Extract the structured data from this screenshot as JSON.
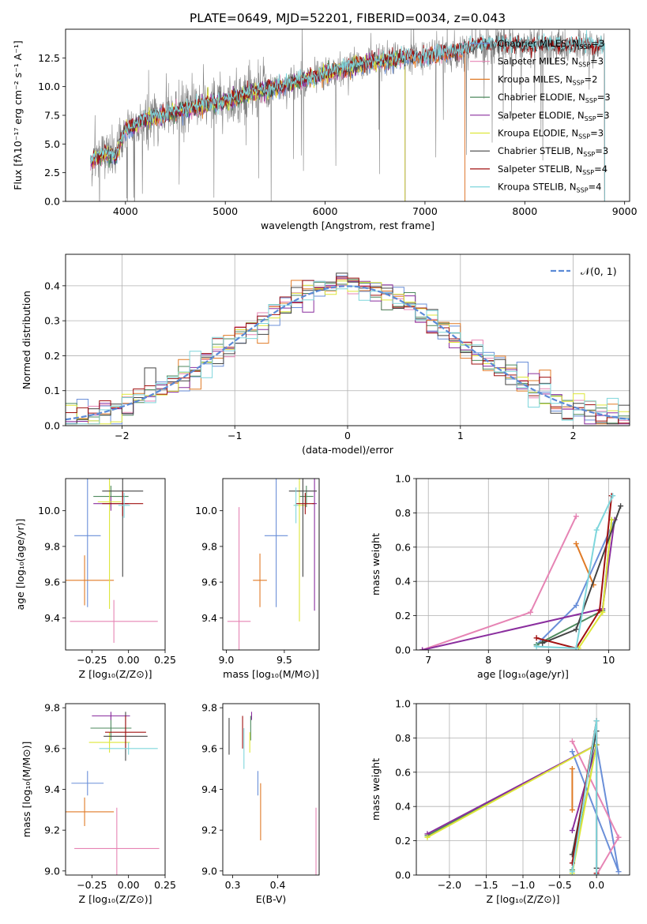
{
  "title": "PLATE=0649, MJD=52201, FIBERID=0034, z=0.043",
  "colors": {
    "Chabrier MILES": "#6a8fd8",
    "Salpeter MILES": "#e684b4",
    "Kroupa MILES": "#e07a26",
    "Chabrier ELODIE": "#4e8a5e",
    "Salpeter ELODIE": "#8a2e9e",
    "Kroupa ELODIE": "#dde63a",
    "Chabrier STELIB": "#444444",
    "Salpeter STELIB": "#a01010",
    "Kroupa STELIB": "#7fd6dc",
    "normal": "#5b8ad6"
  },
  "chart_data": [
    {
      "panel": "spectrum",
      "type": "line",
      "xlabel": "wavelength [Angstrom, rest frame]",
      "ylabel": "Flux [fλ10⁻¹⁷ erg cm⁻² s⁻¹ A⁻¹]",
      "xlim": [
        3400,
        9050
      ],
      "ylim": [
        0,
        15
      ],
      "xticks": [
        "4000",
        "5000",
        "6000",
        "7000",
        "8000",
        "9000"
      ],
      "yticks": [
        "0.0",
        "2.5",
        "5.0",
        "7.5",
        "10.0",
        "12.5"
      ],
      "legend_position": "upper-right",
      "legend": [
        {
          "name": "Chabrier MILES",
          "nssp": "3"
        },
        {
          "name": "Salpeter MILES",
          "nssp": "3"
        },
        {
          "name": "Kroupa MILES",
          "nssp": "2"
        },
        {
          "name": "Chabrier ELODIE",
          "nssp": "3"
        },
        {
          "name": "Salpeter ELODIE",
          "nssp": "3"
        },
        {
          "name": "Kroupa ELODIE",
          "nssp": "3"
        },
        {
          "name": "Chabrier STELIB",
          "nssp": "3"
        },
        {
          "name": "Salpeter STELIB",
          "nssp": "4"
        },
        {
          "name": "Kroupa STELIB",
          "nssp": "4"
        }
      ],
      "data_color": "#808080",
      "continuum": {
        "x": [
          3650,
          3800,
          3900,
          4000,
          4100,
          4200,
          4400,
          4600,
          4800,
          5000,
          5200,
          5500,
          5800,
          6000,
          6200,
          6500,
          6800,
          7000,
          7200,
          7400,
          7600,
          7800,
          8000,
          8200,
          8400,
          8600,
          8800
        ],
        "y": [
          3.5,
          4.2,
          3.8,
          6.3,
          6.5,
          7.2,
          7.6,
          8.0,
          8.4,
          8.7,
          9.3,
          9.9,
          10.6,
          11.1,
          11.6,
          12.1,
          12.5,
          12.6,
          12.9,
          13.2,
          13.7,
          13.7,
          13.5,
          13.6,
          13.5,
          13.5,
          13.6
        ]
      },
      "model_ends": {
        "Chabrier MILES": 7400,
        "Salpeter MILES": 7400,
        "Kroupa MILES": 7400,
        "Chabrier ELODIE": 6800,
        "Salpeter ELODIE": 6800,
        "Kroupa ELODIE": 6800,
        "Chabrier STELIB": 8800,
        "Salpeter STELIB": 8800,
        "Kroupa STELIB": 8800
      }
    },
    {
      "panel": "residuals",
      "type": "line",
      "xlabel": "(data-model)/error",
      "ylabel": "Normed distribution",
      "xlim": [
        -2.5,
        2.5
      ],
      "ylim": [
        0,
        0.49
      ],
      "xticks": [
        "−2",
        "−1",
        "0",
        "1",
        "2"
      ],
      "xtick_values": [
        -2,
        -1,
        0,
        1,
        2
      ],
      "yticks": [
        "0.0",
        "0.1",
        "0.2",
        "0.3",
        "0.4"
      ],
      "legend": "𝒩(0, 1)",
      "legend_position": "upper-right",
      "grid": true,
      "bin_width": 0.1,
      "normal": {
        "mean": 0,
        "sigma": 1
      }
    },
    {
      "panel": "age-vs-Z",
      "type": "scatter",
      "xlabel": "Z [log₁₀(Z/Z⊙)]",
      "ylabel": "age  [log₁₀(age/yr)]",
      "xlim": [
        -0.43,
        0.25
      ],
      "ylim": [
        9.22,
        10.18
      ],
      "xticks": [
        "−0.25",
        "0.00",
        "0.25"
      ],
      "xtick_values": [
        -0.25,
        0.0,
        0.25
      ],
      "yticks": [
        "9.4",
        "9.6",
        "9.8",
        "10.0"
      ],
      "ytick_values": [
        9.4,
        9.6,
        9.8,
        10.0
      ],
      "points": [
        {
          "series": "Chabrier MILES",
          "x": -0.28,
          "y": 9.86,
          "xerr": 0.09,
          "yerr": 0.4
        },
        {
          "series": "Salpeter MILES",
          "x": -0.1,
          "y": 9.38,
          "xerr": 0.3,
          "yerr": 0.12
        },
        {
          "series": "Kroupa MILES",
          "x": -0.3,
          "y": 9.61,
          "xerr": 0.2,
          "yerr": 0.14
        },
        {
          "series": "Chabrier ELODIE",
          "x": -0.12,
          "y": 10.08,
          "xerr": 0.12,
          "yerr": 0.06
        },
        {
          "series": "Salpeter ELODIE",
          "x": -0.12,
          "y": 10.04,
          "xerr": 0.12,
          "yerr": 0.04
        },
        {
          "series": "Kroupa ELODIE",
          "x": -0.13,
          "y": 10.05,
          "xerr": 0.08,
          "yerr": 0.6
        },
        {
          "series": "Chabrier STELIB",
          "x": -0.04,
          "y": 10.11,
          "xerr": 0.14,
          "yerr": 0.48
        },
        {
          "series": "Salpeter STELIB",
          "x": -0.04,
          "y": 10.04,
          "xerr": 0.14,
          "yerr": 0.07
        },
        {
          "series": "Kroupa STELIB",
          "x": -0.03,
          "y": 10.03,
          "xerr": 0.04,
          "yerr": 0.07
        }
      ]
    },
    {
      "panel": "age-vs-mass",
      "type": "scatter",
      "xlabel": "mass [log₁₀(M/M⊙)]",
      "ylabel": "",
      "xlim": [
        8.97,
        9.8
      ],
      "ylim": [
        9.22,
        10.18
      ],
      "xticks": [
        "9.0",
        "9.5"
      ],
      "xtick_values": [
        9.0,
        9.5
      ],
      "yticks": [
        "9.4",
        "9.6",
        "9.8",
        "10.0"
      ],
      "ytick_values": [
        9.4,
        9.6,
        9.8,
        10.0
      ],
      "points": [
        {
          "series": "Chabrier MILES",
          "x": 9.43,
          "y": 9.86,
          "xerr": 0.1,
          "yerr": 0.4
        },
        {
          "series": "Salpeter MILES",
          "x": 9.11,
          "y": 9.38,
          "xerr": 0.1,
          "yerr": 0.64
        },
        {
          "series": "Kroupa MILES",
          "x": 9.29,
          "y": 9.61,
          "xerr": 0.06,
          "yerr": 0.15
        },
        {
          "series": "Chabrier ELODIE",
          "x": 9.69,
          "y": 10.08,
          "xerr": 0.06,
          "yerr": 0.06
        },
        {
          "series": "Salpeter ELODIE",
          "x": 9.76,
          "y": 10.04,
          "xerr": 0.02,
          "yerr": 0.6
        },
        {
          "series": "Kroupa ELODIE",
          "x": 9.63,
          "y": 10.03,
          "xerr": 0.05,
          "yerr": 0.65
        },
        {
          "series": "Chabrier STELIB",
          "x": 9.66,
          "y": 10.11,
          "xerr": 0.12,
          "yerr": 0.48
        },
        {
          "series": "Salpeter STELIB",
          "x": 9.68,
          "y": 10.04,
          "xerr": 0.08,
          "yerr": 0.06
        },
        {
          "series": "Kroupa STELIB",
          "x": 9.6,
          "y": 10.03,
          "xerr": 0.02,
          "yerr": 0.1
        }
      ]
    },
    {
      "panel": "weight-vs-age",
      "type": "line",
      "xlabel": "age  [log₁₀(age/yr)]",
      "ylabel": "mass weight",
      "xlim": [
        6.8,
        10.35
      ],
      "ylim": [
        0,
        1
      ],
      "xticks": [
        "7",
        "8",
        "9",
        "10"
      ],
      "xtick_values": [
        7,
        8,
        9,
        10
      ],
      "yticks": [
        "0.0",
        "0.2",
        "0.4",
        "0.6",
        "0.8",
        "1.0"
      ],
      "ytick_values": [
        0,
        0.2,
        0.4,
        0.6,
        0.8,
        1.0
      ],
      "grid": true,
      "series": [
        {
          "name": "Chabrier MILES",
          "x": [
            8.8,
            9.46,
            10.1
          ],
          "y": [
            0.03,
            0.26,
            0.76
          ]
        },
        {
          "name": "Salpeter MILES",
          "x": [
            6.9,
            8.7,
            9.46
          ],
          "y": [
            0.0,
            0.22,
            0.78
          ]
        },
        {
          "name": "Kroupa MILES",
          "x": [
            9.46,
            9.75
          ],
          "y": [
            0.62,
            0.38
          ]
        },
        {
          "name": "Chabrier ELODIE",
          "x": [
            8.8,
            9.9,
            10.05
          ],
          "y": [
            0.03,
            0.23,
            0.76
          ]
        },
        {
          "name": "Salpeter ELODIE",
          "x": [
            6.9,
            9.9,
            10.1
          ],
          "y": [
            0.0,
            0.24,
            0.76
          ]
        },
        {
          "name": "Kroupa ELODIE",
          "x": [
            9.5,
            9.9,
            10.05
          ],
          "y": [
            0.01,
            0.22,
            0.76
          ]
        },
        {
          "name": "Chabrier STELIB",
          "x": [
            8.9,
            9.46,
            10.2
          ],
          "y": [
            0.04,
            0.12,
            0.84
          ]
        },
        {
          "name": "Salpeter STELIB",
          "x": [
            8.8,
            9.46,
            9.85,
            10.05
          ],
          "y": [
            0.07,
            0.01,
            0.23,
            0.9
          ]
        },
        {
          "name": "Kroupa STELIB",
          "x": [
            8.8,
            9.46,
            9.8,
            10.07
          ],
          "y": [
            0.02,
            0.01,
            0.7,
            0.9
          ]
        }
      ]
    },
    {
      "panel": "mass-vs-Z",
      "type": "scatter",
      "xlabel": "Z [log₁₀(Z/Z⊙)]",
      "ylabel": "mass [log₁₀(M/M⊙)]",
      "xlim": [
        -0.43,
        0.25
      ],
      "ylim": [
        8.98,
        9.82
      ],
      "xticks": [
        "−0.25",
        "0.00",
        "0.25"
      ],
      "xtick_values": [
        -0.25,
        0.0,
        0.25
      ],
      "yticks": [
        "9.0",
        "9.2",
        "9.4",
        "9.6",
        "9.8"
      ],
      "ytick_values": [
        9.0,
        9.2,
        9.4,
        9.6,
        9.8
      ],
      "points": [
        {
          "series": "Chabrier MILES",
          "x": -0.28,
          "y": 9.43,
          "xerr": 0.11,
          "yerr": 0.06
        },
        {
          "series": "Salpeter MILES",
          "x": -0.08,
          "y": 9.11,
          "xerr": 0.29,
          "yerr": 0.2
        },
        {
          "series": "Kroupa MILES",
          "x": -0.3,
          "y": 9.29,
          "xerr": 0.2,
          "yerr": 0.07
        },
        {
          "series": "Chabrier ELODIE",
          "x": -0.12,
          "y": 9.7,
          "xerr": 0.14,
          "yerr": 0.06
        },
        {
          "series": "Salpeter ELODIE",
          "x": -0.12,
          "y": 9.76,
          "xerr": 0.13,
          "yerr": 0.02
        },
        {
          "series": "Kroupa ELODIE",
          "x": -0.13,
          "y": 9.63,
          "xerr": 0.14,
          "yerr": 0.05
        },
        {
          "series": "Chabrier STELIB",
          "x": -0.02,
          "y": 9.66,
          "xerr": 0.15,
          "yerr": 0.12
        },
        {
          "series": "Salpeter STELIB",
          "x": -0.02,
          "y": 9.68,
          "xerr": 0.14,
          "yerr": 0.08
        },
        {
          "series": "Kroupa STELIB",
          "x": 0.0,
          "y": 9.6,
          "xerr": 0.2,
          "yerr": 0.03
        }
      ]
    },
    {
      "panel": "mass-vs-EBV",
      "type": "scatter",
      "xlabel": "E(B-V)",
      "ylabel": "",
      "xlim": [
        0.278,
        0.492
      ],
      "ylim": [
        8.98,
        9.82
      ],
      "xticks": [
        "0.3",
        "0.4"
      ],
      "xtick_values": [
        0.3,
        0.4
      ],
      "yticks": [
        "9.0",
        "9.2",
        "9.4",
        "9.6",
        "9.8"
      ],
      "ytick_values": [
        9.0,
        9.2,
        9.4,
        9.6,
        9.8
      ],
      "points": [
        {
          "series": "Chabrier MILES",
          "x": 0.356,
          "y": 9.43,
          "xerr": 0.0,
          "yerr": 0.06
        },
        {
          "series": "Salpeter MILES",
          "x": 0.485,
          "y": 9.11,
          "xerr": 0.0,
          "yerr": 0.2
        },
        {
          "series": "Kroupa MILES",
          "x": 0.362,
          "y": 9.29,
          "xerr": 0.0,
          "yerr": 0.14
        },
        {
          "series": "Chabrier ELODIE",
          "x": 0.34,
          "y": 9.7,
          "xerr": 0.0,
          "yerr": 0.06
        },
        {
          "series": "Salpeter ELODIE",
          "x": 0.342,
          "y": 9.76,
          "xerr": 0.0,
          "yerr": 0.02
        },
        {
          "series": "Kroupa ELODIE",
          "x": 0.338,
          "y": 9.63,
          "xerr": 0.0,
          "yerr": 0.05
        },
        {
          "series": "Chabrier STELIB",
          "x": 0.292,
          "y": 9.66,
          "xerr": 0.0,
          "yerr": 0.09
        },
        {
          "series": "Salpeter STELIB",
          "x": 0.322,
          "y": 9.68,
          "xerr": 0.0,
          "yerr": 0.08
        },
        {
          "series": "Kroupa STELIB",
          "x": 0.325,
          "y": 9.6,
          "xerr": 0.0,
          "yerr": 0.1
        }
      ]
    },
    {
      "panel": "weight-vs-Z",
      "type": "line",
      "xlabel": "Z [log₁₀(Z/Z⊙)]",
      "ylabel": "mass weight",
      "xlim": [
        -2.45,
        0.45
      ],
      "ylim": [
        0,
        1
      ],
      "xticks": [
        "−2.0",
        "−1.5",
        "−1.0",
        "−0.5",
        "0.0"
      ],
      "xtick_values": [
        -2.0,
        -1.5,
        -1.0,
        -0.5,
        0.0
      ],
      "yticks": [
        "0.0",
        "0.2",
        "0.4",
        "0.6",
        "0.8",
        "1.0"
      ],
      "ytick_values": [
        0,
        0.2,
        0.4,
        0.6,
        0.8,
        1.0
      ],
      "grid": true,
      "series": [
        {
          "name": "Chabrier MILES",
          "x": [
            -0.33,
            0.3,
            0.0
          ],
          "y": [
            0.72,
            0.02,
            0.76
          ]
        },
        {
          "name": "Salpeter MILES",
          "x": [
            -0.33,
            0.3,
            0.0
          ],
          "y": [
            0.78,
            0.22,
            0.0
          ]
        },
        {
          "name": "Kroupa MILES",
          "x": [
            -0.33,
            -0.33
          ],
          "y": [
            0.62,
            0.38
          ]
        },
        {
          "name": "Chabrier ELODIE",
          "x": [
            -2.3,
            0.0,
            -0.33
          ],
          "y": [
            0.23,
            0.76,
            0.03
          ]
        },
        {
          "name": "Salpeter ELODIE",
          "x": [
            -2.3,
            0.0,
            -0.33
          ],
          "y": [
            0.24,
            0.76,
            0.26
          ]
        },
        {
          "name": "Kroupa ELODIE",
          "x": [
            -2.3,
            0.0,
            -0.33
          ],
          "y": [
            0.22,
            0.76,
            0.01
          ]
        },
        {
          "name": "Chabrier STELIB",
          "x": [
            -0.33,
            0.0,
            0.0
          ],
          "y": [
            0.12,
            0.84,
            0.04
          ]
        },
        {
          "name": "Salpeter STELIB",
          "x": [
            -0.33,
            0.0,
            0.0
          ],
          "y": [
            0.07,
            0.9,
            0.01
          ]
        },
        {
          "name": "Kroupa STELIB",
          "x": [
            -0.33,
            0.0,
            0.0
          ],
          "y": [
            0.02,
            0.9,
            0.0
          ]
        }
      ]
    }
  ]
}
